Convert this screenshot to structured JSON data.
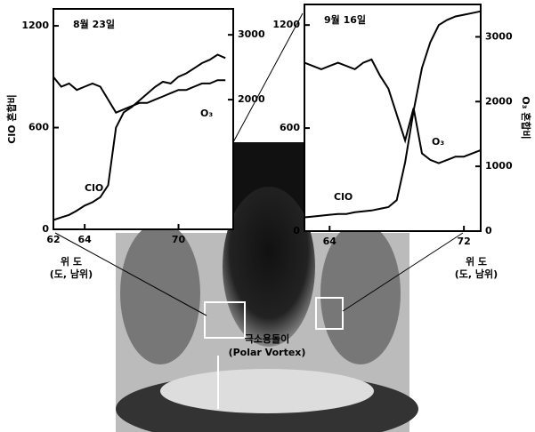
{
  "chart_data": [
    {
      "type": "line",
      "title": "8월 23일",
      "x": [
        62,
        62.5,
        63,
        63.5,
        64,
        64.5,
        65,
        65.5,
        66,
        66.5,
        67,
        67.5,
        68,
        68.5,
        69,
        69.5,
        70,
        70.5,
        71,
        71.5,
        72,
        72.5,
        73
      ],
      "series": [
        {
          "name": "ClO",
          "color": "#000000",
          "values": [
            55,
            70,
            85,
            110,
            140,
            160,
            190,
            260,
            600,
            690,
            720,
            760,
            800,
            840,
            870,
            860,
            900,
            920,
            950,
            980,
            1000,
            1030,
            1010
          ]
        },
        {
          "name": "O₃",
          "color": "#000000",
          "axis": "y2",
          "values": [
            2350,
            2200,
            2250,
            2150,
            2200,
            2250,
            2200,
            2000,
            1800,
            1850,
            1900,
            1950,
            1950,
            2000,
            2050,
            2100,
            2150,
            2150,
            2200,
            2250,
            2250,
            2300,
            2300
          ]
        }
      ],
      "xlim": [
        62,
        73.5
      ],
      "xticks": [
        62,
        64,
        70
      ],
      "ylim": [
        0,
        1300
      ],
      "yticks": [
        0,
        600,
        1200
      ],
      "y2lim": [
        0,
        3400
      ],
      "y2ticks": [
        2000,
        3000
      ],
      "ylabel": "ClO 혼합비",
      "xlabel": [
        "위 도",
        "(도, 남위)"
      ]
    },
    {
      "type": "line",
      "title": "9월 16일",
      "x": [
        62.5,
        63,
        63.5,
        64,
        64.5,
        65,
        65.5,
        66,
        66.5,
        67,
        67.5,
        68,
        68.5,
        69,
        69.5,
        70,
        70.5,
        71,
        71.5,
        72,
        72.5,
        73
      ],
      "series": [
        {
          "name": "ClO",
          "color": "#000000",
          "values": [
            80,
            85,
            90,
            95,
            100,
            100,
            110,
            115,
            120,
            130,
            140,
            180,
            400,
            700,
            950,
            1100,
            1200,
            1230,
            1250,
            1260,
            1270,
            1280
          ]
        },
        {
          "name": "O₃",
          "color": "#000000",
          "axis": "y2",
          "values": [
            2600,
            2550,
            2500,
            2550,
            2600,
            2550,
            2500,
            2600,
            2650,
            2400,
            2200,
            1800,
            1400,
            1900,
            1200,
            1100,
            1050,
            1100,
            1150,
            1150,
            1200,
            1250
          ]
        }
      ],
      "xlim": [
        62.5,
        73
      ],
      "xticks": [
        64,
        72
      ],
      "ylim": [
        0,
        1320
      ],
      "yticks": [
        0,
        600,
        1200
      ],
      "y2lim": [
        0,
        3500
      ],
      "y2ticks": [
        0,
        1000,
        2000,
        3000
      ],
      "y2label": "O₃ 혼합비",
      "xlabel": [
        "위 도",
        "(도, 남위)"
      ]
    }
  ],
  "annotation": [
    "극소용돌이",
    "(Polar Vortex)"
  ]
}
